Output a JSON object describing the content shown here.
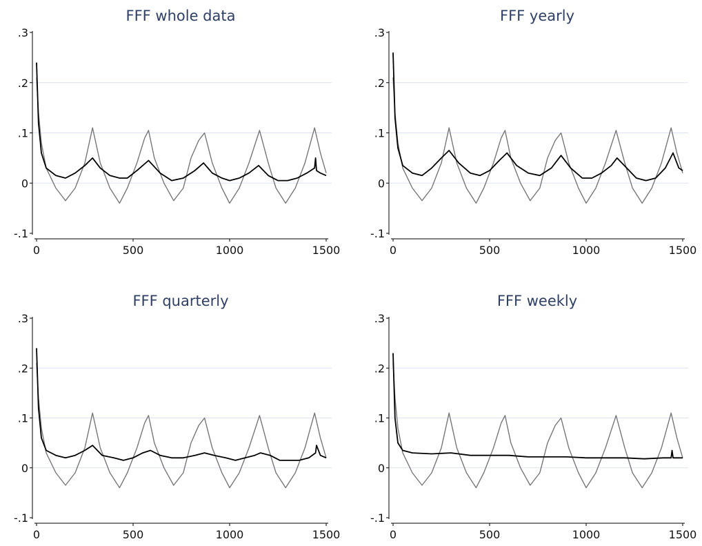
{
  "chart_data": [
    {
      "type": "line",
      "title": "FFF whole data",
      "xlim": [
        0,
        1500
      ],
      "ylim": [
        -0.1,
        0.3
      ],
      "xticks": [
        0,
        500,
        1000,
        1500
      ],
      "xtick_labels": [
        "0",
        "500",
        "1000",
        "1500"
      ],
      "yticks": [
        -0.1,
        0,
        0.1,
        0.2,
        0.3
      ],
      "ytick_labels": [
        "-.1",
        "0",
        ".1",
        ".2",
        ".3"
      ],
      "gridlines_y": [
        0,
        0.1,
        0.2
      ],
      "series": [
        {
          "color": "#777777",
          "x": [
            0,
            10,
            25,
            50,
            100,
            150,
            200,
            250,
            290,
            330,
            380,
            430,
            470,
            520,
            560,
            580,
            610,
            660,
            710,
            760,
            800,
            840,
            870,
            910,
            960,
            1000,
            1050,
            1100,
            1155,
            1200,
            1240,
            1290,
            1340,
            1390,
            1440,
            1470,
            1500
          ],
          "y": [
            0.21,
            0.14,
            0.08,
            0.03,
            -0.01,
            -0.035,
            -0.01,
            0.04,
            0.11,
            0.04,
            -0.01,
            -0.04,
            -0.01,
            0.04,
            0.09,
            0.105,
            0.05,
            0.0,
            -0.035,
            -0.01,
            0.05,
            0.085,
            0.1,
            0.04,
            -0.01,
            -0.04,
            -0.01,
            0.04,
            0.105,
            0.04,
            -0.01,
            -0.04,
            -0.01,
            0.04,
            0.11,
            0.06,
            0.02
          ]
        },
        {
          "color": "#000000",
          "x": [
            0,
            10,
            25,
            50,
            100,
            150,
            200,
            250,
            290,
            330,
            380,
            430,
            470,
            520,
            580,
            640,
            700,
            760,
            820,
            865,
            910,
            960,
            1000,
            1050,
            1100,
            1150,
            1200,
            1250,
            1300,
            1350,
            1400,
            1440,
            1445,
            1450,
            1470,
            1500
          ],
          "y": [
            0.24,
            0.12,
            0.06,
            0.03,
            0.015,
            0.01,
            0.02,
            0.035,
            0.05,
            0.03,
            0.015,
            0.01,
            0.01,
            0.025,
            0.045,
            0.02,
            0.005,
            0.01,
            0.025,
            0.04,
            0.02,
            0.01,
            0.005,
            0.01,
            0.02,
            0.035,
            0.015,
            0.005,
            0.005,
            0.01,
            0.02,
            0.03,
            0.05,
            0.025,
            0.02,
            0.015
          ]
        }
      ]
    },
    {
      "type": "line",
      "title": "FFF yearly",
      "xlim": [
        0,
        1500
      ],
      "ylim": [
        -0.1,
        0.3
      ],
      "xticks": [
        0,
        500,
        1000,
        1500
      ],
      "xtick_labels": [
        "0",
        "500",
        "1000",
        "1500"
      ],
      "yticks": [
        -0.1,
        0,
        0.1,
        0.2,
        0.3
      ],
      "ytick_labels": [
        "-.1",
        "0",
        ".1",
        ".2",
        ".3"
      ],
      "gridlines_y": [
        0,
        0.1,
        0.2
      ],
      "series": [
        {
          "color": "#777777",
          "x": [
            0,
            10,
            25,
            50,
            100,
            150,
            200,
            250,
            290,
            330,
            380,
            430,
            470,
            520,
            560,
            580,
            610,
            660,
            710,
            760,
            800,
            840,
            870,
            910,
            960,
            1000,
            1050,
            1100,
            1155,
            1200,
            1240,
            1290,
            1340,
            1390,
            1440,
            1470,
            1500
          ],
          "y": [
            0.21,
            0.14,
            0.08,
            0.03,
            -0.01,
            -0.035,
            -0.01,
            0.04,
            0.11,
            0.04,
            -0.01,
            -0.04,
            -0.01,
            0.04,
            0.09,
            0.105,
            0.05,
            0.0,
            -0.035,
            -0.01,
            0.05,
            0.085,
            0.1,
            0.04,
            -0.01,
            -0.04,
            -0.01,
            0.04,
            0.105,
            0.04,
            -0.01,
            -0.04,
            -0.01,
            0.04,
            0.11,
            0.06,
            0.02
          ]
        },
        {
          "color": "#000000",
          "x": [
            0,
            10,
            25,
            50,
            100,
            150,
            200,
            250,
            290,
            340,
            400,
            450,
            500,
            550,
            590,
            640,
            700,
            760,
            820,
            870,
            920,
            980,
            1030,
            1080,
            1130,
            1160,
            1210,
            1260,
            1310,
            1360,
            1410,
            1450,
            1480,
            1500
          ],
          "y": [
            0.26,
            0.13,
            0.07,
            0.035,
            0.02,
            0.015,
            0.03,
            0.05,
            0.065,
            0.04,
            0.02,
            0.015,
            0.025,
            0.045,
            0.06,
            0.035,
            0.02,
            0.015,
            0.03,
            0.055,
            0.03,
            0.01,
            0.01,
            0.02,
            0.035,
            0.05,
            0.03,
            0.01,
            0.005,
            0.01,
            0.03,
            0.06,
            0.03,
            0.025
          ]
        }
      ]
    },
    {
      "type": "line",
      "title": "FFF quarterly",
      "xlim": [
        0,
        1500
      ],
      "ylim": [
        -0.1,
        0.3
      ],
      "xticks": [
        0,
        500,
        1000,
        1500
      ],
      "xtick_labels": [
        "0",
        "500",
        "1000",
        "1500"
      ],
      "yticks": [
        -0.1,
        0,
        0.1,
        0.2,
        0.3
      ],
      "ytick_labels": [
        "-.1",
        "0",
        ".1",
        ".2",
        ".3"
      ],
      "gridlines_y": [
        0,
        0.1,
        0.2
      ],
      "series": [
        {
          "color": "#777777",
          "x": [
            0,
            10,
            25,
            50,
            100,
            150,
            200,
            250,
            290,
            330,
            380,
            430,
            470,
            520,
            560,
            580,
            610,
            660,
            710,
            760,
            800,
            840,
            870,
            910,
            960,
            1000,
            1050,
            1100,
            1155,
            1200,
            1240,
            1290,
            1340,
            1390,
            1440,
            1470,
            1500
          ],
          "y": [
            0.21,
            0.14,
            0.08,
            0.03,
            -0.01,
            -0.035,
            -0.01,
            0.04,
            0.11,
            0.04,
            -0.01,
            -0.04,
            -0.01,
            0.04,
            0.09,
            0.105,
            0.05,
            0.0,
            -0.035,
            -0.01,
            0.05,
            0.085,
            0.1,
            0.04,
            -0.01,
            -0.04,
            -0.01,
            0.04,
            0.105,
            0.04,
            -0.01,
            -0.04,
            -0.01,
            0.04,
            0.11,
            0.06,
            0.02
          ]
        },
        {
          "color": "#000000",
          "x": [
            0,
            10,
            25,
            50,
            100,
            150,
            200,
            250,
            290,
            340,
            400,
            450,
            500,
            550,
            590,
            640,
            700,
            760,
            820,
            870,
            920,
            980,
            1030,
            1080,
            1130,
            1160,
            1210,
            1260,
            1310,
            1360,
            1410,
            1445,
            1450,
            1470,
            1500
          ],
          "y": [
            0.24,
            0.12,
            0.06,
            0.035,
            0.025,
            0.02,
            0.025,
            0.035,
            0.045,
            0.025,
            0.02,
            0.015,
            0.02,
            0.03,
            0.035,
            0.025,
            0.02,
            0.02,
            0.025,
            0.03,
            0.025,
            0.02,
            0.015,
            0.02,
            0.025,
            0.03,
            0.025,
            0.015,
            0.015,
            0.015,
            0.02,
            0.03,
            0.045,
            0.025,
            0.02
          ]
        }
      ]
    },
    {
      "type": "line",
      "title": "FFF weekly",
      "xlim": [
        0,
        1500
      ],
      "ylim": [
        -0.1,
        0.3
      ],
      "xticks": [
        0,
        500,
        1000,
        1500
      ],
      "xtick_labels": [
        "0",
        "500",
        "1000",
        "1500"
      ],
      "yticks": [
        -0.1,
        0,
        0.1,
        0.2,
        0.3
      ],
      "ytick_labels": [
        "-.1",
        "0",
        ".1",
        ".2",
        ".3"
      ],
      "gridlines_y": [
        0,
        0.1,
        0.2
      ],
      "series": [
        {
          "color": "#777777",
          "x": [
            0,
            10,
            25,
            50,
            100,
            150,
            200,
            250,
            290,
            330,
            380,
            430,
            470,
            520,
            560,
            580,
            610,
            660,
            710,
            760,
            800,
            840,
            870,
            910,
            960,
            1000,
            1050,
            1100,
            1155,
            1200,
            1240,
            1290,
            1340,
            1390,
            1440,
            1470,
            1500
          ],
          "y": [
            0.21,
            0.14,
            0.08,
            0.03,
            -0.01,
            -0.035,
            -0.01,
            0.04,
            0.11,
            0.04,
            -0.01,
            -0.04,
            -0.01,
            0.04,
            0.09,
            0.105,
            0.05,
            0.0,
            -0.035,
            -0.01,
            0.05,
            0.085,
            0.1,
            0.04,
            -0.01,
            -0.04,
            -0.01,
            0.04,
            0.105,
            0.04,
            -0.01,
            -0.04,
            -0.01,
            0.04,
            0.11,
            0.06,
            0.02
          ]
        },
        {
          "color": "#000000",
          "x": [
            0,
            10,
            25,
            50,
            100,
            200,
            300,
            400,
            500,
            600,
            700,
            800,
            900,
            1000,
            1100,
            1200,
            1300,
            1400,
            1440,
            1445,
            1450,
            1500
          ],
          "y": [
            0.23,
            0.1,
            0.05,
            0.035,
            0.03,
            0.028,
            0.03,
            0.025,
            0.025,
            0.025,
            0.022,
            0.022,
            0.022,
            0.02,
            0.02,
            0.02,
            0.018,
            0.02,
            0.02,
            0.035,
            0.02,
            0.02
          ]
        }
      ]
    }
  ]
}
